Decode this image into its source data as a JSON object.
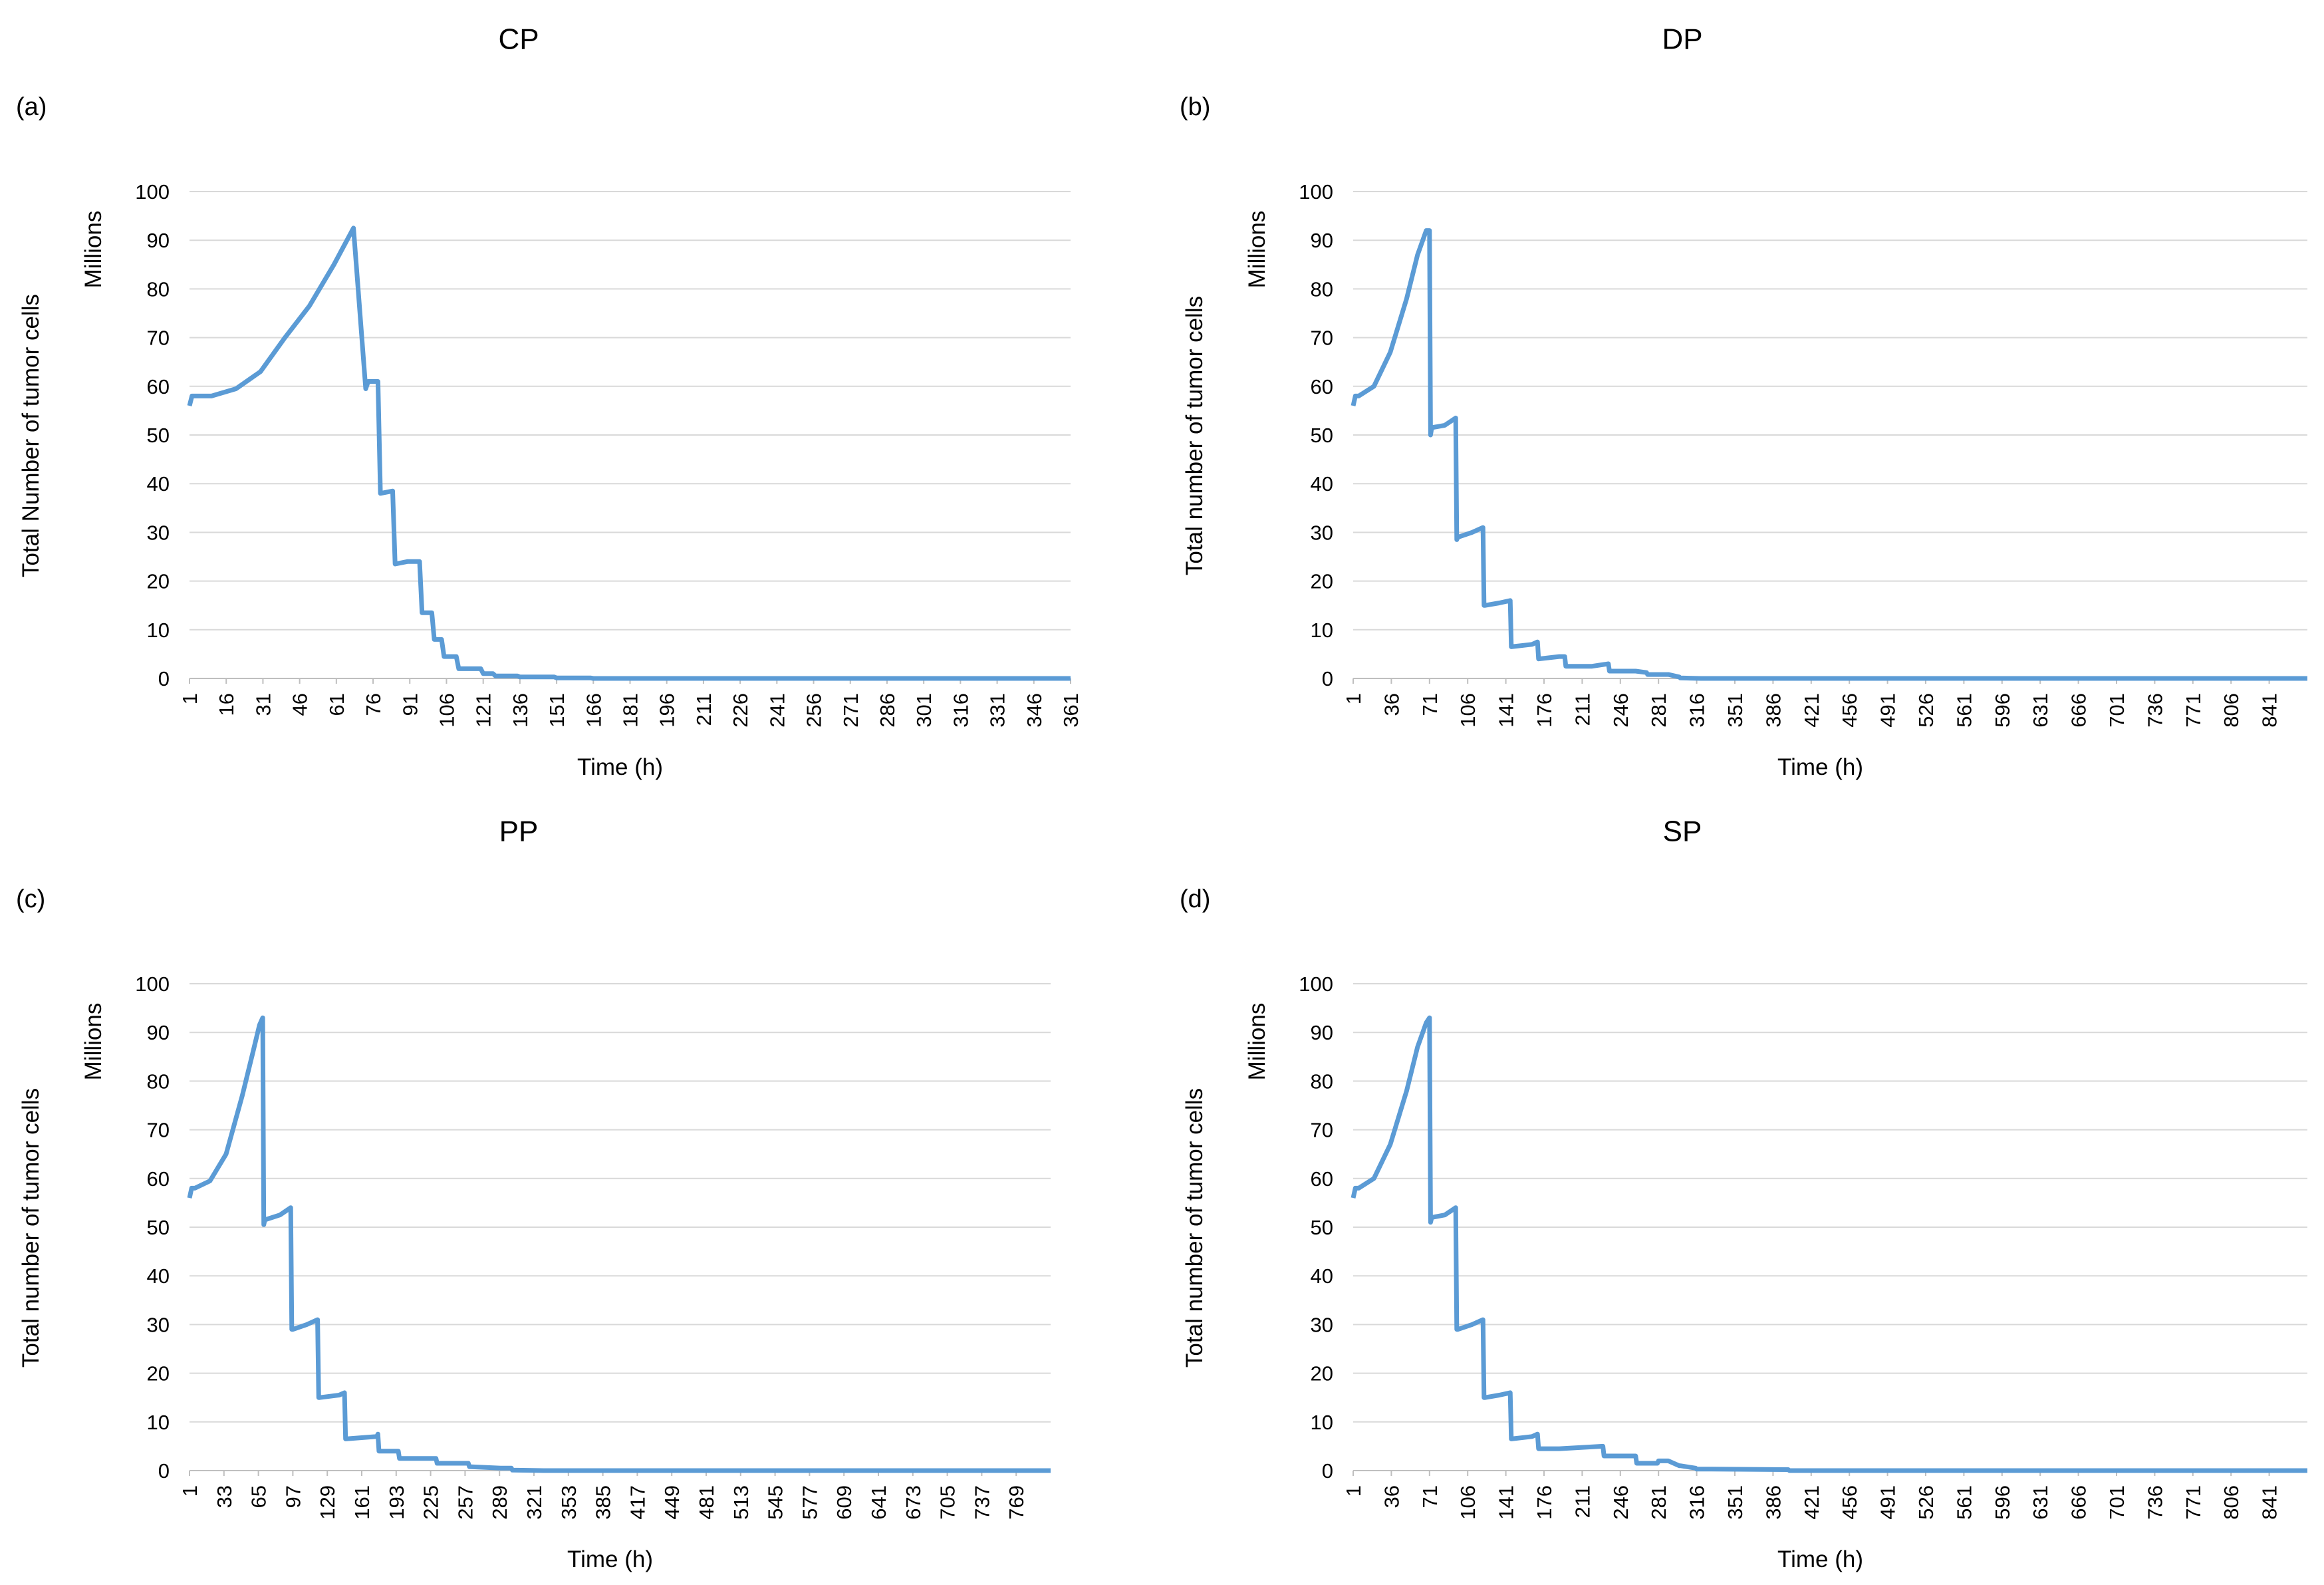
{
  "chart_data": [
    {
      "type": "line",
      "panel_label": "(a)",
      "title": "CP",
      "xlabel": "Time (h)",
      "ylabel": "Total Number of tumor cells",
      "yunit": "Millions",
      "ylim": [
        0,
        100
      ],
      "yticks": [
        0,
        10,
        20,
        30,
        40,
        50,
        60,
        70,
        80,
        90,
        100
      ],
      "xlim": [
        1,
        361
      ],
      "xticks": [
        1,
        16,
        31,
        46,
        61,
        76,
        91,
        106,
        121,
        136,
        151,
        166,
        181,
        196,
        211,
        226,
        241,
        256,
        271,
        286,
        301,
        316,
        331,
        346,
        361
      ],
      "series": [
        {
          "name": "Total Number of tumor cells",
          "x": [
            1,
            2,
            3,
            10,
            20,
            30,
            40,
            50,
            60,
            68,
            73,
            74,
            75,
            78,
            79,
            84,
            85,
            90,
            95,
            96,
            100,
            101,
            104,
            105,
            110,
            111,
            120,
            121,
            125,
            126,
            135,
            136,
            150,
            151,
            165,
            166,
            361
          ],
          "y": [
            56,
            58,
            58,
            58,
            59.5,
            63,
            70,
            76.5,
            85,
            92.5,
            59.5,
            61,
            61,
            61,
            38,
            38.5,
            23.5,
            24,
            24,
            13.5,
            13.5,
            8,
            8,
            4.5,
            4.5,
            2,
            2,
            1,
            1,
            0.5,
            0.5,
            0.3,
            0.3,
            0.1,
            0.1,
            0,
            0
          ]
        }
      ]
    },
    {
      "type": "line",
      "panel_label": "(b)",
      "title": "DP",
      "xlabel": "Time (h)",
      "ylabel": "Total number of tumor cells",
      "yunit": "Millions",
      "ylim": [
        0,
        100
      ],
      "yticks": [
        0,
        10,
        20,
        30,
        40,
        50,
        60,
        70,
        80,
        90,
        100
      ],
      "xlim": [
        1,
        876
      ],
      "xticks": [
        1,
        36,
        71,
        106,
        141,
        176,
        211,
        246,
        281,
        316,
        351,
        386,
        421,
        456,
        491,
        526,
        561,
        596,
        631,
        666,
        701,
        736,
        771,
        806,
        841
      ],
      "series": [
        {
          "name": "Total number of tumor cells",
          "x": [
            1,
            3,
            6,
            20,
            35,
            50,
            60,
            68,
            71,
            72,
            73,
            85,
            95,
            96,
            97,
            110,
            120,
            121,
            122,
            135,
            145,
            146,
            165,
            170,
            171,
            190,
            195,
            196,
            220,
            235,
            236,
            260,
            270,
            271,
            290,
            300,
            301,
            320,
            876
          ],
          "y": [
            56,
            58,
            58,
            60,
            67,
            78,
            87,
            92,
            92,
            50,
            51.5,
            52,
            53.5,
            28.5,
            29,
            30,
            31,
            15,
            15,
            15.5,
            16,
            6.5,
            7,
            7.5,
            4,
            4.5,
            4.5,
            2.5,
            2.5,
            3,
            1.5,
            1.5,
            1.2,
            0.8,
            0.8,
            0.3,
            0.1,
            0,
            0
          ]
        }
      ]
    },
    {
      "type": "line",
      "panel_label": "(c)",
      "title": "PP",
      "xlabel": "Time (h)",
      "ylabel": "Total number of tumor cells",
      "yunit": "Millions",
      "ylim": [
        0,
        100
      ],
      "yticks": [
        0,
        10,
        20,
        30,
        40,
        50,
        60,
        70,
        80,
        90,
        100
      ],
      "xlim": [
        1,
        801
      ],
      "xticks": [
        1,
        33,
        65,
        97,
        129,
        161,
        193,
        225,
        257,
        289,
        321,
        353,
        385,
        417,
        449,
        481,
        513,
        545,
        577,
        609,
        641,
        673,
        705,
        737,
        769
      ],
      "series": [
        {
          "name": "Total number of tumor cells",
          "x": [
            1,
            3,
            6,
            20,
            35,
            50,
            60,
            66,
            69,
            70,
            71,
            85,
            95,
            96,
            97,
            110,
            120,
            121,
            122,
            140,
            145,
            146,
            175,
            176,
            177,
            190,
            195,
            196,
            225,
            230,
            231,
            255,
            260,
            261,
            290,
            300,
            301,
            330,
            801
          ],
          "y": [
            56,
            58,
            58,
            59.5,
            65,
            77,
            86,
            91.5,
            93,
            50.5,
            51.5,
            52.5,
            54,
            29,
            29,
            30,
            31,
            15,
            15,
            15.5,
            16,
            6.5,
            7,
            7.5,
            4,
            4,
            4,
            2.5,
            2.5,
            2.5,
            1.5,
            1.5,
            1.5,
            0.8,
            0.5,
            0.5,
            0.1,
            0,
            0
          ]
        }
      ]
    },
    {
      "type": "line",
      "panel_label": "(d)",
      "title": "SP",
      "xlabel": "Time (h)",
      "ylabel": "Total number of tumor cells",
      "yunit": "Millions",
      "ylim": [
        0,
        100
      ],
      "yticks": [
        0,
        10,
        20,
        30,
        40,
        50,
        60,
        70,
        80,
        90,
        100
      ],
      "xlim": [
        1,
        876
      ],
      "xticks": [
        1,
        36,
        71,
        106,
        141,
        176,
        211,
        246,
        281,
        316,
        351,
        386,
        421,
        456,
        491,
        526,
        561,
        596,
        631,
        666,
        701,
        736,
        771,
        806,
        841
      ],
      "series": [
        {
          "name": "Total number of tumor cells",
          "x": [
            1,
            3,
            6,
            20,
            35,
            50,
            60,
            68,
            71,
            72,
            73,
            85,
            95,
            96,
            97,
            110,
            120,
            121,
            122,
            135,
            145,
            146,
            165,
            170,
            171,
            190,
            230,
            231,
            260,
            261,
            280,
            281,
            290,
            300,
            301,
            315,
            316,
            330,
            400,
            401,
            876
          ],
          "y": [
            56,
            58,
            58,
            60,
            67,
            78,
            87,
            92,
            93,
            51,
            52,
            52.5,
            54,
            29,
            29,
            30,
            31,
            15,
            15,
            15.5,
            16,
            6.5,
            7,
            7.5,
            4.5,
            4.5,
            5,
            3,
            3,
            1.5,
            1.5,
            2,
            2,
            1,
            1,
            0.5,
            0.3,
            0.3,
            0.2,
            0,
            0
          ]
        }
      ]
    }
  ]
}
